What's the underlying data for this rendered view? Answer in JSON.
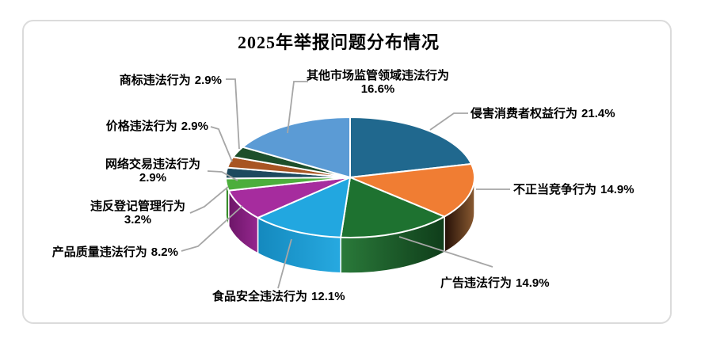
{
  "chart_data": {
    "type": "pie",
    "style": "3d-pie",
    "title": "2025年举报问题分布情况",
    "start_angle_deg": 0,
    "clockwise": true,
    "legend": "none",
    "label_format": "name percent",
    "frame_border_color": "#DBDBDB",
    "leader_line_color": "#A6A6A6",
    "slices": [
      {
        "name": "侵害消费者权益行为",
        "value": 21.4,
        "pct_label": "21.4%",
        "color": "#20688E",
        "side_from": "#12405A",
        "side_to": "#1B5B7E"
      },
      {
        "name": "不正当竞争行为",
        "value": 14.9,
        "pct_label": "14.9%",
        "color": "#F07D33",
        "side_from": "#241007",
        "side_to": "#8A5A31"
      },
      {
        "name": "广告违法行为",
        "value": 14.9,
        "pct_label": "14.9%",
        "color": "#1E7230",
        "side_from": "#2A7A3A",
        "side_to": "#0F3D1A"
      },
      {
        "name": "食品安全违法行为",
        "value": 12.1,
        "pct_label": "12.1%",
        "color": "#22A7E0",
        "side_from": "#1489BE",
        "side_to": "#27A9E0"
      },
      {
        "name": "产品质量违法行为",
        "value": 8.2,
        "pct_label": "8.2%",
        "color": "#A62C9E",
        "side_from": "#6D1668",
        "side_to": "#95278F"
      },
      {
        "name": "违反登记管理行为",
        "value": 3.2,
        "pct_label": "3.2%",
        "color": "#4CAE3C",
        "side_from": "#2F7D22",
        "side_to": "#3F9C33"
      },
      {
        "name": "网络交易违法行为",
        "value": 2.9,
        "pct_label": "2.9%",
        "color": "#1D4A5F",
        "side_from": "#102C3A",
        "side_to": "#16404F"
      },
      {
        "name": "价格违法行为",
        "value": 2.9,
        "pct_label": "2.9%",
        "color": "#A85523",
        "side_from": "#6B3414",
        "side_to": "#96491E"
      },
      {
        "name": "商标违法行为",
        "value": 2.9,
        "pct_label": "2.9%",
        "color": "#1D4F2B",
        "side_from": "#0F3018",
        "side_to": "#1A4726"
      },
      {
        "name": "其他市场监管领域违法行为",
        "value": 16.6,
        "pct_label": "16.6%",
        "color": "#5B9BD5",
        "side_from": "#3C72A8",
        "side_to": "#5392CC"
      }
    ]
  }
}
